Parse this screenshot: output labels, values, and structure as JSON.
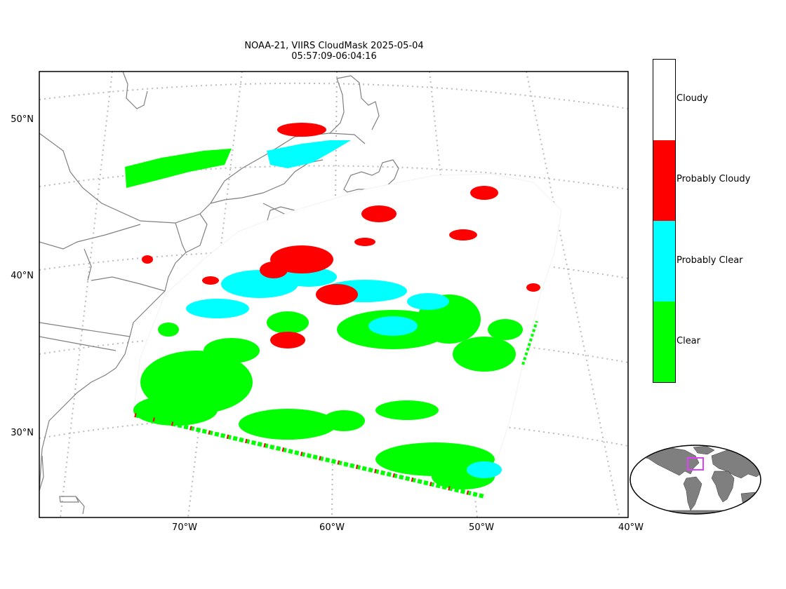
{
  "title": {
    "line1": "NOAA-21, VIIRS CloudMask 2025-05-04",
    "line2": "05:57:09-06:04:16"
  },
  "axes": {
    "lat_labels": [
      "50°N",
      "40°N",
      "30°N"
    ],
    "lon_labels": [
      "70°W",
      "60°W",
      "50°W",
      "40°W"
    ]
  },
  "colorbar": {
    "categories": [
      {
        "label": "Cloudy",
        "color": "#ffffff"
      },
      {
        "label": "Probably Cloudy",
        "color": "#ff0000"
      },
      {
        "label": "Probably Clear",
        "color": "#00ffff"
      },
      {
        "label": "Clear",
        "color": "#00ff00"
      }
    ]
  },
  "colors": {
    "coastline": "#808080",
    "gridline": "#bbbbbb",
    "inset_land": "#7f7f7f",
    "inset_box": "#e040fb"
  }
}
